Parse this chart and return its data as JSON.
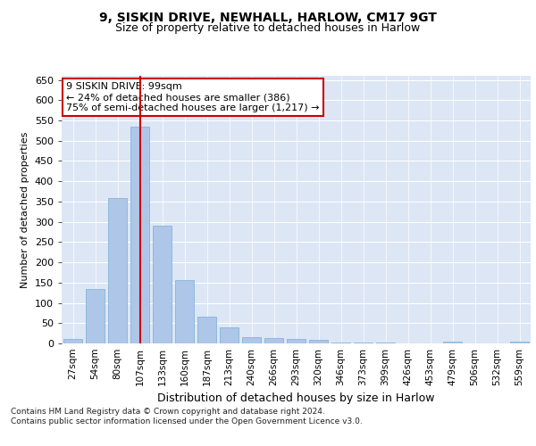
{
  "title1": "9, SISKIN DRIVE, NEWHALL, HARLOW, CM17 9GT",
  "title2": "Size of property relative to detached houses in Harlow",
  "xlabel": "Distribution of detached houses by size in Harlow",
  "ylabel": "Number of detached properties",
  "categories": [
    "27sqm",
    "54sqm",
    "80sqm",
    "107sqm",
    "133sqm",
    "160sqm",
    "187sqm",
    "213sqm",
    "240sqm",
    "266sqm",
    "293sqm",
    "320sqm",
    "346sqm",
    "373sqm",
    "399sqm",
    "426sqm",
    "453sqm",
    "479sqm",
    "506sqm",
    "532sqm",
    "559sqm"
  ],
  "values": [
    10,
    135,
    358,
    535,
    290,
    157,
    67,
    40,
    16,
    14,
    12,
    8,
    3,
    2,
    2,
    1,
    0,
    4,
    1,
    0,
    5
  ],
  "bar_color": "#aec6e8",
  "bar_edge_color": "#7aafd4",
  "vline_x_index": 3,
  "vline_color": "#cc0000",
  "annotation_text": "9 SISKIN DRIVE: 99sqm\n← 24% of detached houses are smaller (386)\n75% of semi-detached houses are larger (1,217) →",
  "annotation_box_color": "#ffffff",
  "annotation_box_edge": "#cc0000",
  "background_color": "#dce6f5",
  "footer": "Contains HM Land Registry data © Crown copyright and database right 2024.\nContains public sector information licensed under the Open Government Licence v3.0.",
  "ylim": [
    0,
    660
  ],
  "yticks": [
    0,
    50,
    100,
    150,
    200,
    250,
    300,
    350,
    400,
    450,
    500,
    550,
    600,
    650
  ],
  "title1_fontsize": 10,
  "title2_fontsize": 9,
  "ylabel_fontsize": 8,
  "xlabel_fontsize": 9
}
